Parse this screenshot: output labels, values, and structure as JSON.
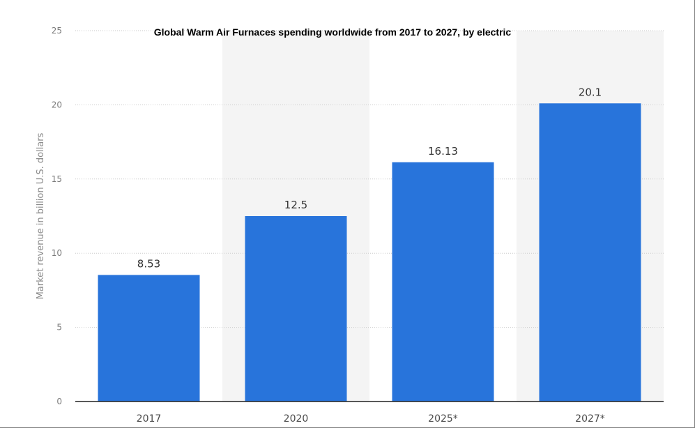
{
  "chart_data": {
    "type": "bar",
    "title": "Global Warm Air Furnaces spending worldwide from 2017 to 2027, by electric",
    "ylabel": "Market revenue in billion U.S. dollars",
    "xlabel": "",
    "categories": [
      "2017",
      "2020",
      "2025*",
      "2027*"
    ],
    "values": [
      8.53,
      12.5,
      16.13,
      20.1
    ],
    "value_labels": [
      "8.53",
      "12.5",
      "16.13",
      "20.1"
    ],
    "ylim": [
      0,
      25
    ],
    "yticks": [
      0,
      5,
      10,
      15,
      20,
      25
    ],
    "grid": true,
    "legend": "none",
    "colors": {
      "bar": "#2874db",
      "grid": "#c9c9c9",
      "band": "#f4f4f4",
      "axis": "#222222"
    }
  }
}
